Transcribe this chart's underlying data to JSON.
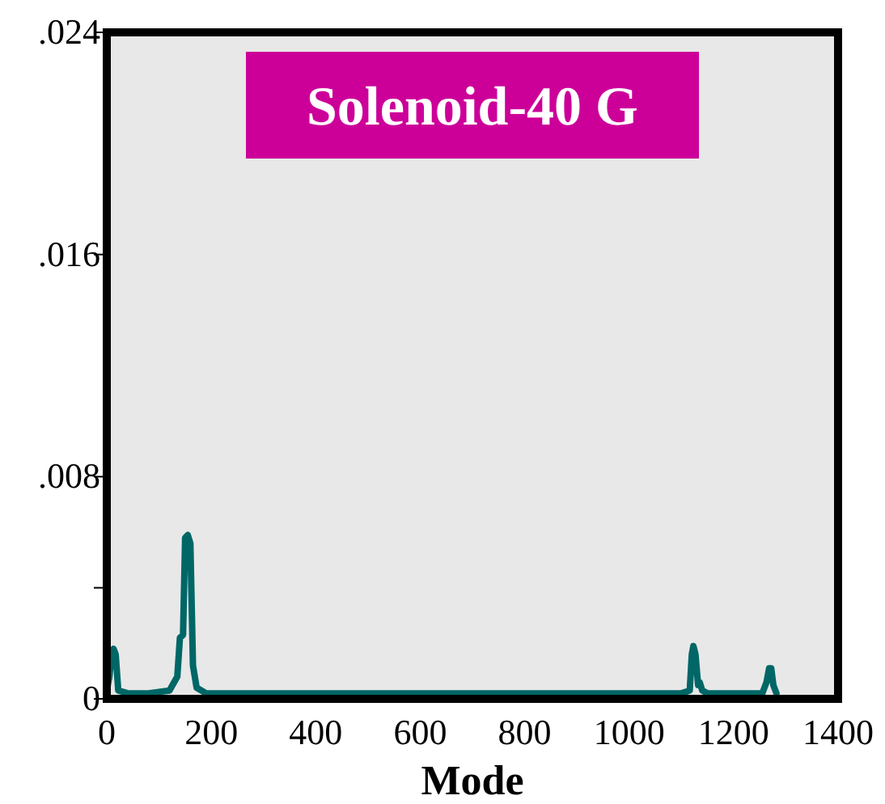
{
  "chart_data": {
    "type": "line",
    "title": "Solenoid-40 G",
    "xlabel": "Mode",
    "x": [
      0,
      5,
      9,
      13,
      17,
      22,
      40,
      80,
      120,
      135,
      140,
      146,
      150,
      155,
      160,
      165,
      172,
      190,
      240,
      400,
      600,
      800,
      1000,
      1100,
      1116,
      1120,
      1123,
      1127,
      1132,
      1135,
      1140,
      1150,
      1200,
      1255,
      1263,
      1268,
      1272,
      1276,
      1282
    ],
    "series": [
      {
        "color": "#006666",
        "values": [
          0.0003,
          0.0008,
          0.0016,
          0.0018,
          0.0016,
          0.0003,
          0.0002,
          0.0002,
          0.0003,
          0.0008,
          0.0022,
          0.0023,
          0.0058,
          0.0059,
          0.0056,
          0.0012,
          0.0004,
          0.0002,
          0.0002,
          0.0002,
          0.0002,
          0.0002,
          0.0002,
          0.0002,
          0.0003,
          0.0016,
          0.0019,
          0.0016,
          0.0005,
          0.0006,
          0.0003,
          0.0002,
          0.0002,
          0.0002,
          0.0006,
          0.0011,
          0.0011,
          0.0005,
          0.0002
        ]
      }
    ],
    "xlim": [
      0,
      1400
    ],
    "xticks": [
      0,
      200,
      400,
      600,
      800,
      1000,
      1200,
      1400
    ],
    "ylim": [
      0,
      0.024
    ],
    "yticks": [
      {
        "value": 0,
        "label": "0"
      },
      {
        "value": 0.004,
        "label": null
      },
      {
        "value": 0.008,
        "label": ".008"
      },
      {
        "value": 0.016,
        "label": ".016"
      },
      {
        "value": 0.024,
        "label": ".024"
      }
    ],
    "grid": false,
    "marker": "none",
    "line_style": "solid"
  }
}
